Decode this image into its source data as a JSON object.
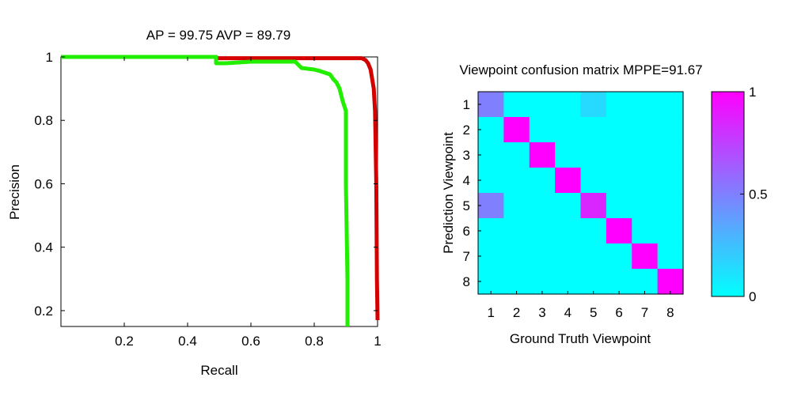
{
  "chart_data": [
    {
      "type": "line",
      "title": "AP = 99.75 AVP = 89.79",
      "xlabel": "Recall",
      "ylabel": "Precision",
      "xlim": [
        0,
        1
      ],
      "ylim": [
        0.15,
        1
      ],
      "xticks": [
        0.2,
        0.4,
        0.6,
        0.8,
        1
      ],
      "xtick_labels": [
        "0.2",
        "0.4",
        "0.6",
        "0.8",
        "1"
      ],
      "yticks": [
        0.2,
        0.4,
        0.6,
        0.8,
        1
      ],
      "ytick_labels": [
        "0.2",
        "0.4",
        "0.6",
        "0.8",
        "1"
      ],
      "grid": false,
      "series": [
        {
          "color": "#d40000",
          "x": [
            0.0,
            0.49,
            0.49,
            0.95,
            0.962,
            0.97,
            0.978,
            0.983,
            0.988,
            0.992,
            0.996,
            0.998,
            1.0
          ],
          "y": [
            1.0,
            1.0,
            0.996,
            0.996,
            0.99,
            0.98,
            0.96,
            0.93,
            0.9,
            0.83,
            0.6,
            0.3,
            0.17
          ]
        },
        {
          "color": "#22ee00",
          "x": [
            0.0,
            0.49,
            0.49,
            0.52,
            0.6,
            0.7,
            0.74,
            0.75,
            0.76,
            0.8,
            0.82,
            0.85,
            0.86,
            0.87,
            0.88,
            0.885,
            0.89,
            0.9,
            0.9,
            0.905,
            0.905
          ],
          "y": [
            1.0,
            1.0,
            0.98,
            0.98,
            0.985,
            0.985,
            0.985,
            0.975,
            0.965,
            0.96,
            0.955,
            0.945,
            0.93,
            0.92,
            0.9,
            0.88,
            0.86,
            0.83,
            0.6,
            0.3,
            0.15
          ]
        }
      ]
    },
    {
      "type": "heatmap",
      "title": "Viewpoint confusion matrix MPPE=91.67",
      "xlabel": "Ground Truth Viewpoint",
      "ylabel": "Prediction Viewpoint",
      "x_labels": [
        "1",
        "2",
        "3",
        "4",
        "5",
        "6",
        "7",
        "8"
      ],
      "y_labels": [
        "1",
        "2",
        "3",
        "4",
        "5",
        "6",
        "7",
        "8"
      ],
      "colormap": "cool",
      "range": [
        0,
        1
      ],
      "colorbar_ticks": [
        "0",
        "0.5",
        "1"
      ],
      "colorbar_values": [
        0,
        0.5,
        1
      ],
      "matrix": [
        [
          0.5,
          0,
          0,
          0,
          0.15,
          0,
          0,
          0
        ],
        [
          0,
          1,
          0,
          0,
          0,
          0,
          0,
          0
        ],
        [
          0,
          0,
          1,
          0,
          0,
          0,
          0,
          0
        ],
        [
          0,
          0,
          0,
          1,
          0,
          0,
          0,
          0
        ],
        [
          0.5,
          0,
          0,
          0,
          0.85,
          0,
          0,
          0
        ],
        [
          0,
          0,
          0,
          0,
          0,
          1,
          0,
          0
        ],
        [
          0,
          0,
          0,
          0,
          0,
          0,
          1,
          0
        ],
        [
          0,
          0,
          0,
          0,
          0,
          0,
          0,
          1
        ]
      ]
    }
  ]
}
